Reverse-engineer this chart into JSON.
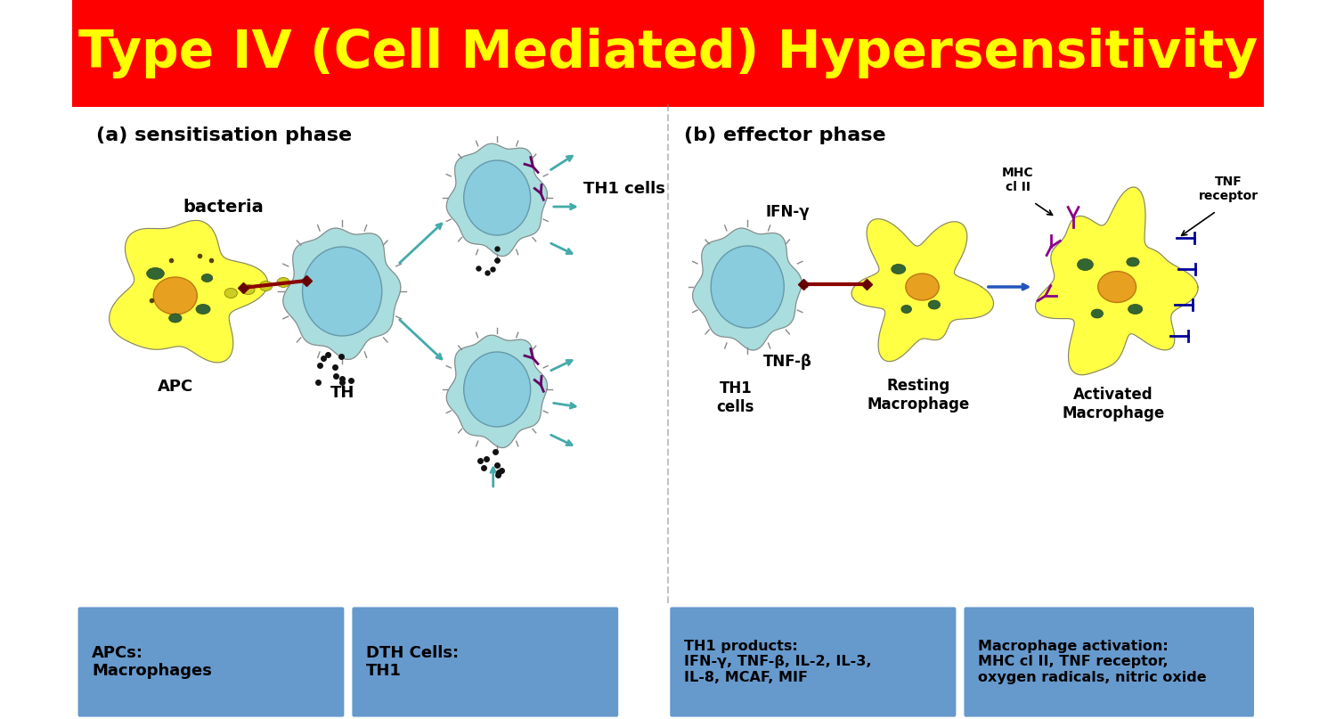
{
  "title": "Type IV (Cell Mediated) Hypersensitivity",
  "title_color": "#FFFF00",
  "title_bg": "#FF0000",
  "title_fontsize": 42,
  "bg_color": "#FFFFFF",
  "section_a_label": "(a) sensitisation phase",
  "section_b_label": "(b) effector phase",
  "bacteria_label": "bacteria",
  "apc_label": "APC",
  "th_label": "TH",
  "th1_cells_label": "TH1 cells",
  "ifn_label": "IFN-γ",
  "tnf_label": "TNF-β",
  "th1_cells_label2": "TH1\ncells",
  "resting_macro_label": "Resting\nMacrophage",
  "activated_macro_label": "Activated\nMacrophage",
  "mhc_label": "MHC\ncl II",
  "tnf_receptor_label": "TNF\nreceptor",
  "box1_text": "APCs:\nMacrophages",
  "box2_text": "DTH Cells:\nTH1",
  "box3_text": "TH1 products:\nIFN-γ, TNF-β, IL-2, IL-3,\nIL-8, MCAF, MIF",
  "box4_text": "Macrophage activation:\nMHC cl II, TNF receptor,\noxygen radicals, nitric oxide",
  "box_bg": "#6699CC",
  "box_text_color": "#000000",
  "cell_yellow": "#FFFF44",
  "cell_cyan_outer": "#AADDDD",
  "cell_cyan_inner": "#88CCDD",
  "arrow_color": "#44AAAA",
  "dots_color": "#111111"
}
